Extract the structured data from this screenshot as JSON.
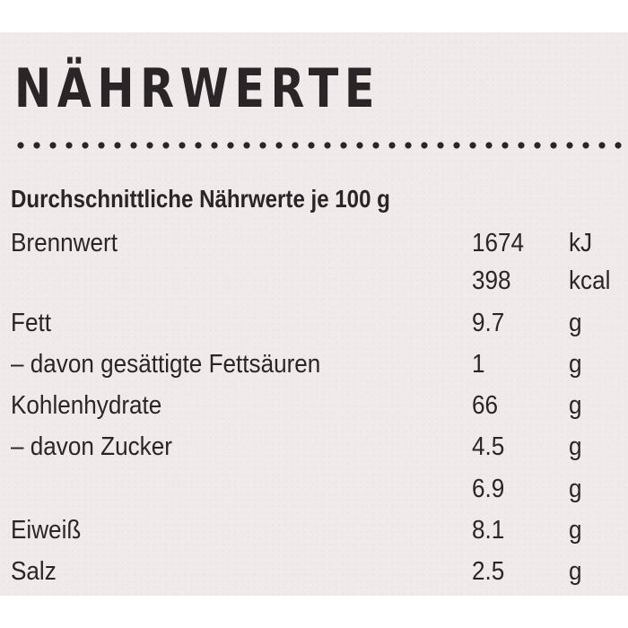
{
  "title": "NÄHRWERTE",
  "subtitle": "Durchschnittliche Nährwerte je 100 g",
  "rows": [
    {
      "label": "Brennwert",
      "value": "1674",
      "unit": "kJ"
    },
    {
      "label": "",
      "value": "398",
      "unit": "kcal"
    },
    {
      "label": "Fett",
      "value": "9.7",
      "unit": "g"
    },
    {
      "label": "– davon gesättigte Fettsäuren",
      "value": "1",
      "unit": "g"
    },
    {
      "label": "Kohlenhydrate",
      "value": "66",
      "unit": "g"
    },
    {
      "label": "– davon Zucker",
      "value": "4.5",
      "unit": "g"
    },
    {
      "label": "",
      "value": "6.9",
      "unit": "g"
    },
    {
      "label": "Eiweiß",
      "value": "8.1",
      "unit": "g"
    },
    {
      "label": "Salz",
      "value": "2.5",
      "unit": "g"
    }
  ],
  "colors": {
    "text": "#2a2628",
    "background": "#f0ebea"
  }
}
